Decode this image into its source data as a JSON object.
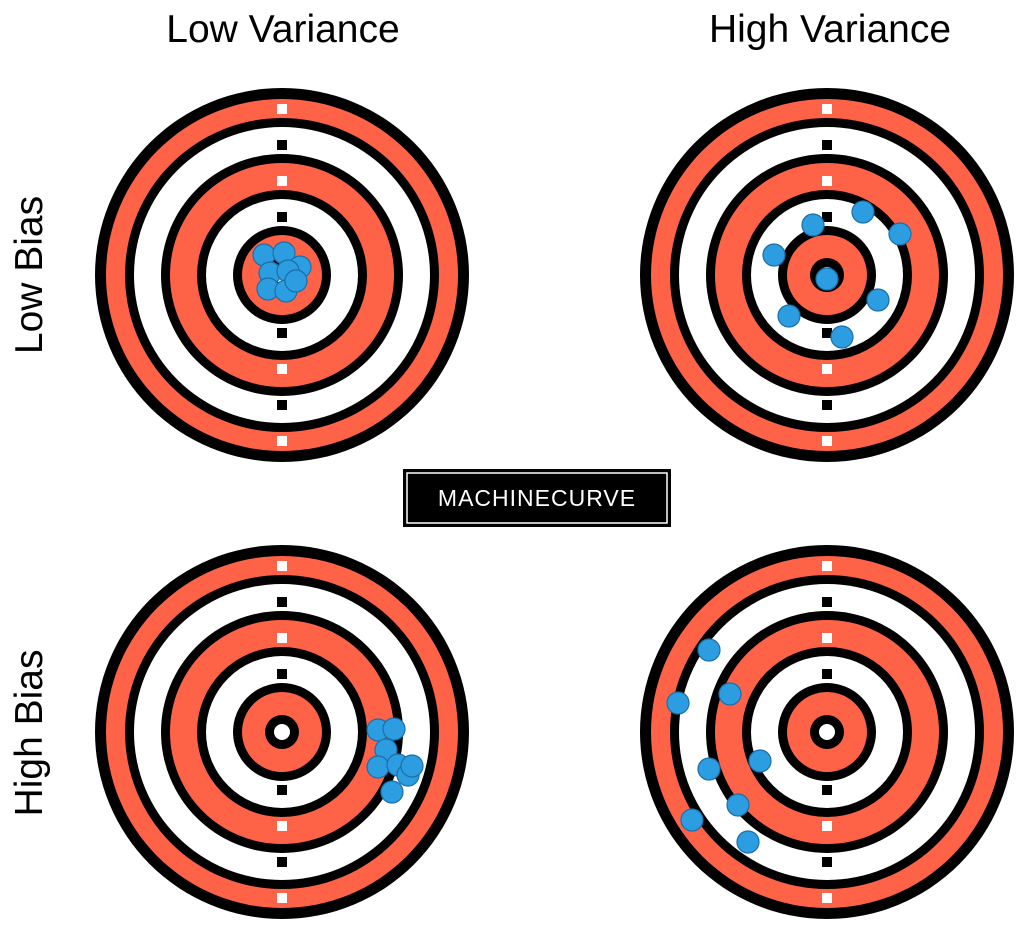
{
  "column_labels": [
    "Low Variance",
    "High Variance"
  ],
  "row_labels": [
    "Low Bias",
    "High Bias"
  ],
  "watermark": "MACHINECURVE",
  "colors": {
    "ring_red": "#ff6347",
    "ring_black": "#000000",
    "ring_white": "#ffffff",
    "hit_fill": "#2b9de0",
    "hit_stroke": "#1a6fa8"
  },
  "targets": [
    {
      "name": "low-bias-low-variance",
      "hits_count": 8
    },
    {
      "name": "low-bias-high-variance",
      "hits_count": 8
    },
    {
      "name": "high-bias-low-variance",
      "hits_count": 8
    },
    {
      "name": "high-bias-high-variance",
      "hits_count": 8
    }
  ]
}
